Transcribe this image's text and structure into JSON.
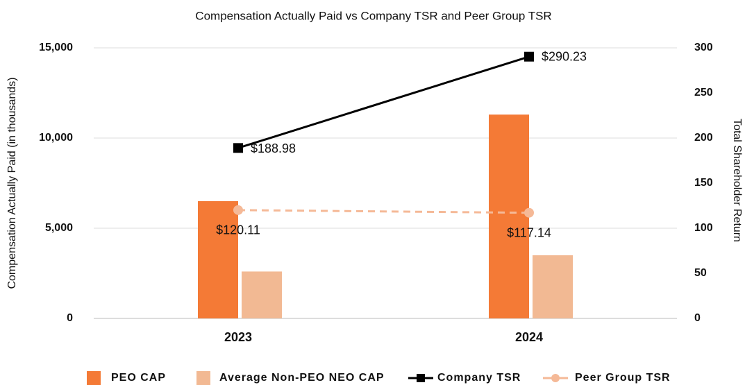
{
  "chart_data": {
    "type": "bar",
    "title": "Compensation Actually Paid vs Company TSR and Peer Group TSR",
    "ylabel": "Compensation Actually Paid (in thousands)",
    "y2label": "Total Shareholder Return",
    "categories": [
      "2023",
      "2024"
    ],
    "series": [
      {
        "name": "PEO CAP",
        "type": "bar",
        "color": "#f47a36",
        "values": [
          6500,
          11300
        ]
      },
      {
        "name": "Average Non-PEO NEO CAP",
        "type": "bar",
        "color": "#f2b993",
        "values": [
          2600,
          3500
        ]
      },
      {
        "name": "Company TSR",
        "type": "line",
        "axis": "y2",
        "color": "#000000",
        "marker": "square",
        "values": [
          188.98,
          290.23
        ],
        "value_labels": [
          "$188.98",
          "$290.23"
        ]
      },
      {
        "name": "Peer Group TSR",
        "type": "line",
        "axis": "y2",
        "color": "#f5b997",
        "marker": "circle",
        "dashed": true,
        "values": [
          120.11,
          117.14
        ],
        "value_labels": [
          "$120.11",
          "$117.14"
        ]
      }
    ],
    "ylim": [
      0,
      15000
    ],
    "yticks": [
      0,
      {
        "value": 5000,
        "label": "5,000"
      },
      {
        "value": 10000,
        "label": "10,000"
      },
      {
        "value": 15000,
        "label": "15,000"
      }
    ],
    "y2lim": [
      0,
      300
    ],
    "y2ticks": [
      0,
      50,
      100,
      150,
      200,
      250,
      300
    ],
    "grid": true,
    "legend": "bottom"
  }
}
